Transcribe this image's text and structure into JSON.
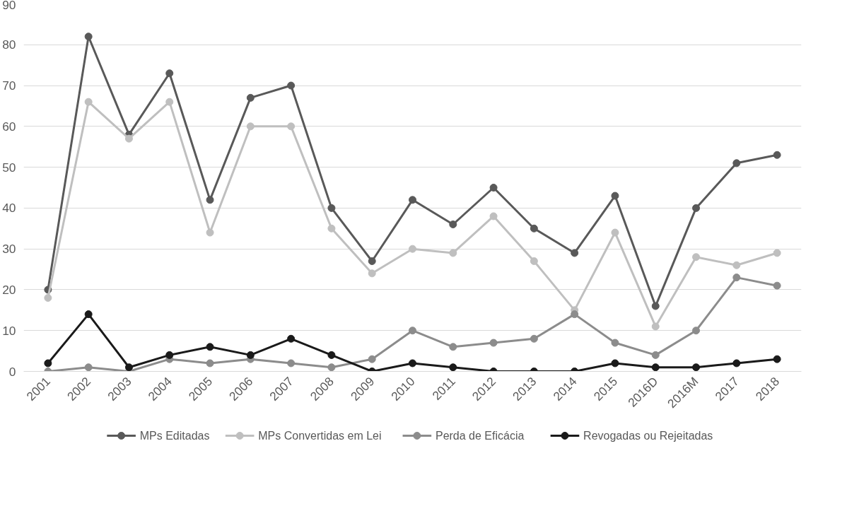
{
  "chart_data": {
    "type": "line",
    "categories": [
      "2001",
      "2002",
      "2003",
      "2004",
      "2005",
      "2006",
      "2007",
      "2008",
      "2009",
      "2010",
      "2011",
      "2012",
      "2013",
      "2014",
      "2015",
      "2016D",
      "2016M",
      "2017",
      "2018"
    ],
    "series": [
      {
        "name": "MPs Editadas",
        "color": "#595959",
        "values": [
          20,
          82,
          58,
          73,
          42,
          67,
          70,
          40,
          27,
          42,
          36,
          45,
          35,
          29,
          43,
          16,
          40,
          51,
          53
        ]
      },
      {
        "name": "MPs Convertidas em Lei",
        "color": "#bfbfbf",
        "values": [
          18,
          66,
          57,
          66,
          34,
          60,
          60,
          35,
          24,
          30,
          29,
          38,
          27,
          15,
          34,
          11,
          28,
          26,
          29
        ]
      },
      {
        "name": "Perda de Eficácia",
        "color": "#8c8c8c",
        "values": [
          0,
          1,
          0,
          3,
          2,
          3,
          2,
          1,
          3,
          10,
          6,
          7,
          8,
          14,
          7,
          4,
          10,
          23,
          21
        ]
      },
      {
        "name": "Revogadas ou Rejeitadas",
        "color": "#1a1a1a",
        "values": [
          2,
          14,
          1,
          4,
          6,
          4,
          8,
          4,
          0,
          2,
          1,
          0,
          0,
          0,
          2,
          1,
          1,
          2,
          3
        ]
      }
    ],
    "ylim": [
      0,
      90
    ],
    "yticks": [
      0,
      10,
      20,
      30,
      40,
      50,
      60,
      70,
      80,
      90
    ],
    "grid": "y",
    "legend": "bottom",
    "marker": "circle",
    "line_style": "solid"
  }
}
